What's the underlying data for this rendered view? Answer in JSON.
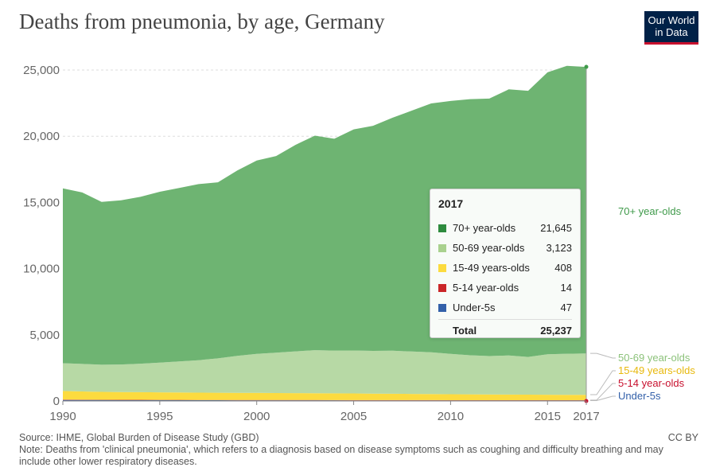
{
  "header": {
    "title": "Deaths from pneumonia, by age, Germany",
    "logo_line1": "Our World",
    "logo_line2": "in Data"
  },
  "chart_data": {
    "type": "area",
    "stacked": true,
    "x": [
      1990,
      1991,
      1992,
      1993,
      1994,
      1995,
      1996,
      1997,
      1998,
      1999,
      2000,
      2001,
      2002,
      2003,
      2004,
      2005,
      2006,
      2007,
      2008,
      2009,
      2010,
      2011,
      2012,
      2013,
      2014,
      2015,
      2016,
      2017
    ],
    "x_ticks": [
      "1990",
      "1995",
      "2000",
      "2005",
      "2010",
      "2015",
      "2017"
    ],
    "y_ticks": [
      "0",
      "5,000",
      "10,000",
      "15,000",
      "20,000",
      "25,000"
    ],
    "ylim": [
      0,
      25000
    ],
    "grid": "horizontal dashed",
    "series": [
      {
        "name": "Under-5s",
        "color": "#3360a9",
        "values": [
          80,
          75,
          70,
          68,
          66,
          64,
          62,
          60,
          58,
          57,
          56,
          55,
          54,
          53,
          52,
          51,
          50,
          50,
          49,
          49,
          48,
          48,
          48,
          47,
          47,
          47,
          47,
          47
        ]
      },
      {
        "name": "5-14 year-olds",
        "color": "#ca2628",
        "values": [
          25,
          24,
          23,
          22,
          22,
          21,
          21,
          20,
          20,
          19,
          19,
          18,
          18,
          18,
          17,
          17,
          17,
          16,
          16,
          16,
          15,
          15,
          15,
          15,
          14,
          14,
          14,
          14
        ]
      },
      {
        "name": "15-49 years-olds",
        "color": "#fcdb3f",
        "values": [
          650,
          620,
          600,
          590,
          580,
          570,
          560,
          550,
          545,
          540,
          535,
          530,
          525,
          520,
          510,
          500,
          490,
          480,
          470,
          460,
          450,
          440,
          430,
          425,
          420,
          415,
          410,
          408
        ]
      },
      {
        "name": "50-69 year-olds",
        "color": "#b7d9a5",
        "values": [
          2100,
          2080,
          2050,
          2080,
          2150,
          2250,
          2350,
          2450,
          2600,
          2800,
          2950,
          3050,
          3150,
          3250,
          3230,
          3250,
          3230,
          3250,
          3200,
          3150,
          3050,
          2950,
          2900,
          2950,
          2850,
          3050,
          3100,
          3123
        ]
      },
      {
        "name": "70+ year-olds",
        "color": "#6eb472",
        "values": [
          13200,
          12950,
          12300,
          12400,
          12600,
          12900,
          13100,
          13300,
          13300,
          14000,
          14600,
          14850,
          15600,
          16200,
          16000,
          16700,
          17000,
          17600,
          18200,
          18800,
          19100,
          19350,
          19450,
          20100,
          20100,
          21300,
          21750,
          21645
        ]
      }
    ],
    "tooltip": {
      "year": "2017",
      "rows": [
        {
          "name": "70+ year-olds",
          "value": "21,645",
          "color": "#2e8b3e"
        },
        {
          "name": "50-69 year-olds",
          "value": "3,123",
          "color": "#a9d18e"
        },
        {
          "name": "15-49 years-olds",
          "value": "408",
          "color": "#fcdb3f"
        },
        {
          "name": "5-14 year-olds",
          "value": "14",
          "color": "#ca2628"
        },
        {
          "name": "Under-5s",
          "value": "47",
          "color": "#3360a9"
        }
      ],
      "total_label": "Total",
      "total_value": "25,237"
    },
    "end_labels": [
      {
        "name": "70+ year-olds",
        "color": "#3f9a4a"
      },
      {
        "name": "50-69 year-olds",
        "color": "#8cc27a"
      },
      {
        "name": "15-49 years-olds",
        "color": "#e8b90d"
      },
      {
        "name": "5-14 year-olds",
        "color": "#c8102e"
      },
      {
        "name": "Under-5s",
        "color": "#3360a9"
      }
    ]
  },
  "footer": {
    "source": "Source: IHME, Global Burden of Disease Study (GBD)",
    "note": "Note: Deaths from 'clinical pneumonia', which refers to a diagnosis based on disease symptoms such as coughing and difficulty breathing and may include other lower respiratory diseases.",
    "license": "CC BY"
  }
}
